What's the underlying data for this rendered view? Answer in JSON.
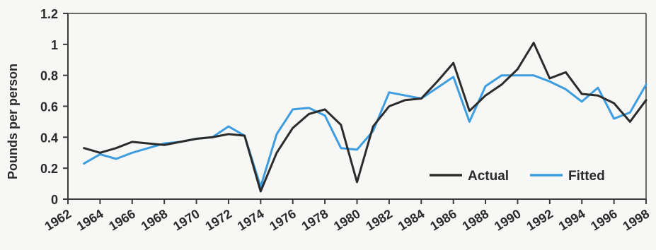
{
  "chart_data": {
    "type": "line",
    "ylabel": "Pounds per person",
    "xlabel": "",
    "ylim": [
      0,
      1.2
    ],
    "xlim": [
      1962,
      1998
    ],
    "y_ticks": [
      0,
      0.2,
      0.4,
      0.6,
      0.8,
      1,
      1.2
    ],
    "y_tick_labels": [
      "0",
      "0.2",
      "0.4",
      "0.6",
      "0.8",
      "1",
      "1.2"
    ],
    "x_ticks": [
      1962,
      1964,
      1966,
      1968,
      1970,
      1972,
      1974,
      1976,
      1978,
      1980,
      1982,
      1984,
      1986,
      1988,
      1990,
      1992,
      1994,
      1996,
      1998
    ],
    "x_tick_labels": [
      "1962",
      "1964",
      "1966",
      "1968",
      "1970",
      "1972",
      "1974",
      "1976",
      "1978",
      "1980",
      "1982",
      "1984",
      "1986",
      "1988",
      "1990",
      "1992",
      "1994",
      "1996",
      "1998"
    ],
    "grid": false,
    "legend_position": "bottom-right",
    "series": [
      {
        "name": "Actual",
        "color": "#2b2b2b",
        "x": [
          1963,
          1964,
          1965,
          1966,
          1967,
          1968,
          1969,
          1970,
          1971,
          1972,
          1973,
          1974,
          1975,
          1976,
          1977,
          1978,
          1979,
          1980,
          1981,
          1982,
          1983,
          1984,
          1985,
          1986,
          1987,
          1988,
          1989,
          1990,
          1991,
          1992,
          1993,
          1994,
          1995,
          1996,
          1997,
          1998
        ],
        "values": [
          0.33,
          0.3,
          0.33,
          0.37,
          0.36,
          0.35,
          0.37,
          0.39,
          0.4,
          0.42,
          0.41,
          0.05,
          0.3,
          0.46,
          0.55,
          0.58,
          0.48,
          0.11,
          0.47,
          0.6,
          0.64,
          0.65,
          0.76,
          0.88,
          0.57,
          0.67,
          0.74,
          0.84,
          1.01,
          0.78,
          0.82,
          0.68,
          0.67,
          0.62,
          0.5,
          0.64
        ]
      },
      {
        "name": "Fitted",
        "color": "#3d9de0",
        "x": [
          1963,
          1964,
          1965,
          1966,
          1967,
          1968,
          1969,
          1970,
          1971,
          1972,
          1973,
          1974,
          1975,
          1976,
          1977,
          1978,
          1979,
          1980,
          1981,
          1982,
          1983,
          1984,
          1985,
          1986,
          1987,
          1988,
          1989,
          1990,
          1991,
          1992,
          1993,
          1994,
          1995,
          1996,
          1997,
          1998
        ],
        "values": [
          0.23,
          0.29,
          0.26,
          0.3,
          0.33,
          0.36,
          0.37,
          0.39,
          0.4,
          0.47,
          0.41,
          0.08,
          0.42,
          0.58,
          0.59,
          0.54,
          0.33,
          0.32,
          0.44,
          0.69,
          0.67,
          0.65,
          0.72,
          0.79,
          0.5,
          0.73,
          0.8,
          0.8,
          0.8,
          0.76,
          0.71,
          0.63,
          0.72,
          0.52,
          0.56,
          0.74
        ]
      }
    ]
  }
}
